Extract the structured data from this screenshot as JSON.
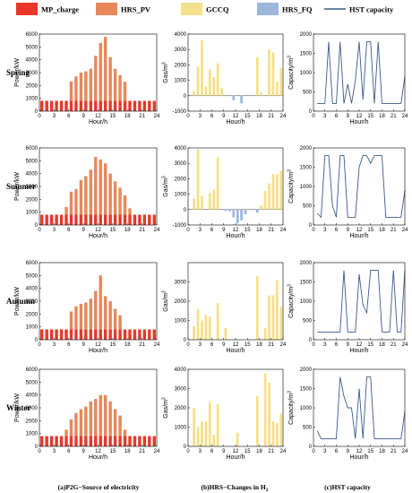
{
  "legend": {
    "items": [
      {
        "label": "MP_charge",
        "color": "#e8372a",
        "kind": "box"
      },
      {
        "label": "HRS_PV",
        "color": "#e8875a",
        "kind": "box"
      },
      {
        "label": "GCCQ",
        "color": "#f4e08a",
        "kind": "box"
      },
      {
        "label": "HRS_FQ",
        "color": "#9cb6dc",
        "kind": "box"
      },
      {
        "label": "HST capacity",
        "color": "#3a5a8c",
        "kind": "line"
      }
    ]
  },
  "seasons": [
    "Spring",
    "Summer",
    "Autumn",
    "Winter"
  ],
  "captions": {
    "a": "(a)P2G−Source of electricity",
    "b_prefix": "(b)HRS−Changes in H",
    "b_sub": "2",
    "c": "(c)HST capacity"
  },
  "axes": {
    "power_ylabel": "Power/kW",
    "gas_ylabel": "Gas/m",
    "gas_sup": "3",
    "cap_ylabel": "Capacity/m",
    "cap_sup": "3",
    "xlabel": "Hour/h",
    "xticks": [
      "0",
      "3",
      "6",
      "9",
      "12",
      "15",
      "18",
      "21",
      "24"
    ]
  },
  "chart_data": [
    {
      "type": "bar",
      "panel": "(a)",
      "season": "Spring",
      "xlim": [
        0,
        24
      ],
      "ylim": [
        0,
        6000
      ],
      "yticks": [
        0,
        1000,
        2000,
        3000,
        4000,
        5000,
        6000
      ],
      "series": [
        {
          "name": "MP_charge",
          "values": [
            800,
            800,
            800,
            800,
            800,
            800,
            800,
            800,
            800,
            800,
            800,
            800,
            800,
            800,
            800,
            800,
            800,
            800,
            800,
            800,
            800,
            800,
            800,
            800
          ]
        },
        {
          "name": "HRS_PV",
          "values": [
            0,
            0,
            0,
            0,
            0,
            0,
            1500,
            1900,
            2200,
            2300,
            2500,
            3500,
            4500,
            5000,
            3400,
            2500,
            2000,
            1500,
            0,
            0,
            0,
            0,
            0,
            0
          ]
        }
      ]
    },
    {
      "type": "bar",
      "panel": "(b)",
      "season": "Spring",
      "xlim": [
        0,
        24
      ],
      "ylim": [
        -1000,
        4000
      ],
      "yticks": [
        -1000,
        0,
        1000,
        2000,
        3000,
        4000
      ],
      "series": [
        {
          "name": "GCCQ",
          "values": [
            0,
            300,
            1900,
            3600,
            600,
            1700,
            1200,
            2100,
            500,
            0,
            0,
            0,
            0,
            0,
            0,
            0,
            0,
            2500,
            200,
            0,
            3000,
            2800,
            900,
            1800
          ]
        },
        {
          "name": "HRS_FQ",
          "values": [
            0,
            0,
            0,
            0,
            0,
            0,
            0,
            0,
            0,
            0,
            0,
            -300,
            0,
            -500,
            0,
            0,
            0,
            0,
            0,
            0,
            0,
            0,
            0,
            0
          ]
        }
      ]
    },
    {
      "type": "line",
      "panel": "(c)",
      "season": "Spring",
      "xlim": [
        0,
        24
      ],
      "ylim": [
        0,
        2000
      ],
      "yticks": [
        0,
        500,
        1000,
        1500,
        2000
      ],
      "series": [
        {
          "name": "HST capacity",
          "x": [
            1,
            2,
            3,
            4,
            5,
            6,
            7,
            8,
            9,
            10,
            11,
            12,
            13,
            14,
            15,
            16,
            17,
            18,
            19,
            20,
            21,
            22,
            23,
            24
          ],
          "values": [
            200,
            200,
            200,
            1800,
            200,
            200,
            1800,
            200,
            700,
            200,
            800,
            1800,
            300,
            1800,
            1800,
            200,
            1800,
            200,
            200,
            200,
            200,
            200,
            200,
            900
          ]
        }
      ]
    },
    {
      "type": "bar",
      "panel": "(a)",
      "season": "Summer",
      "xlim": [
        0,
        24
      ],
      "ylim": [
        0,
        6000
      ],
      "yticks": [
        0,
        1000,
        2000,
        3000,
        4000,
        5000,
        6000
      ],
      "series": [
        {
          "name": "MP_charge",
          "values": [
            800,
            800,
            800,
            800,
            800,
            800,
            800,
            800,
            800,
            800,
            800,
            800,
            800,
            800,
            800,
            800,
            800,
            800,
            800,
            800,
            800,
            800,
            800,
            800
          ]
        },
        {
          "name": "HRS_PV",
          "values": [
            0,
            0,
            0,
            0,
            0,
            600,
            1800,
            2000,
            2700,
            3000,
            3500,
            4500,
            4300,
            4000,
            3200,
            2600,
            2100,
            1500,
            500,
            0,
            0,
            0,
            0,
            0
          ]
        }
      ]
    },
    {
      "type": "bar",
      "panel": "(b)",
      "season": "Summer",
      "xlim": [
        0,
        24
      ],
      "ylim": [
        -1000,
        4000
      ],
      "yticks": [
        -1000,
        0,
        1000,
        2000,
        3000,
        4000
      ],
      "series": [
        {
          "name": "GCCQ",
          "values": [
            0,
            700,
            3900,
            900,
            0,
            1100,
            1300,
            3400,
            0,
            0,
            0,
            0,
            0,
            0,
            0,
            0,
            0,
            0,
            300,
            1200,
            1700,
            2300,
            2300,
            2500
          ]
        },
        {
          "name": "HRS_FQ",
          "values": [
            0,
            0,
            0,
            0,
            0,
            0,
            0,
            0,
            0,
            -100,
            -100,
            -500,
            -900,
            -700,
            -300,
            0,
            0,
            -200,
            0,
            0,
            0,
            0,
            0,
            0
          ]
        }
      ]
    },
    {
      "type": "line",
      "panel": "(c)",
      "season": "Summer",
      "xlim": [
        0,
        24
      ],
      "ylim": [
        0,
        2000
      ],
      "yticks": [
        0,
        500,
        1000,
        1500,
        2000
      ],
      "series": [
        {
          "name": "HST capacity",
          "x": [
            1,
            2,
            3,
            4,
            5,
            6,
            7,
            8,
            9,
            10,
            11,
            12,
            13,
            14,
            15,
            16,
            17,
            18,
            19,
            20,
            21,
            22,
            23,
            24
          ],
          "values": [
            300,
            200,
            1800,
            1800,
            500,
            200,
            1800,
            1800,
            200,
            200,
            200,
            1500,
            1800,
            1800,
            1600,
            1800,
            1800,
            1800,
            200,
            200,
            200,
            200,
            200,
            900
          ]
        }
      ]
    },
    {
      "type": "bar",
      "panel": "(a)",
      "season": "Autumn",
      "xlim": [
        0,
        24
      ],
      "ylim": [
        0,
        6000
      ],
      "yticks": [
        0,
        1000,
        2000,
        3000,
        4000,
        5000,
        6000
      ],
      "series": [
        {
          "name": "MP_charge",
          "values": [
            800,
            800,
            800,
            800,
            800,
            800,
            800,
            800,
            800,
            800,
            800,
            800,
            800,
            800,
            800,
            800,
            800,
            800,
            800,
            800,
            800,
            800,
            800,
            800
          ]
        },
        {
          "name": "HRS_PV",
          "values": [
            0,
            0,
            0,
            0,
            0,
            0,
            1400,
            1800,
            2000,
            2100,
            2400,
            3000,
            4200,
            2600,
            2200,
            1600,
            1100,
            0,
            0,
            0,
            0,
            0,
            0,
            0
          ]
        }
      ]
    },
    {
      "type": "bar",
      "panel": "(b)",
      "season": "Autumn",
      "xlim": [
        0,
        24
      ],
      "ylim": [
        0,
        4000
      ],
      "yticks": [
        0,
        1000,
        2000,
        3000
      ],
      "series": [
        {
          "name": "GCCQ",
          "values": [
            0,
            700,
            1600,
            1000,
            1300,
            1200,
            0,
            1900,
            0,
            600,
            0,
            0,
            0,
            0,
            0,
            0,
            0,
            3300,
            0,
            600,
            2300,
            2300,
            3100,
            1700
          ]
        },
        {
          "name": "HRS_FQ",
          "values": [
            0,
            0,
            0,
            0,
            0,
            0,
            0,
            0,
            0,
            0,
            0,
            0,
            0,
            0,
            0,
            0,
            0,
            0,
            0,
            0,
            0,
            0,
            0,
            0
          ]
        }
      ]
    },
    {
      "type": "line",
      "panel": "(c)",
      "season": "Autumn",
      "xlim": [
        0,
        24
      ],
      "ylim": [
        0,
        2000
      ],
      "yticks": [
        0,
        500,
        1000,
        1500,
        2000
      ],
      "series": [
        {
          "name": "HST capacity",
          "x": [
            1,
            2,
            3,
            4,
            5,
            6,
            7,
            8,
            9,
            10,
            11,
            12,
            13,
            14,
            15,
            16,
            17,
            18,
            19,
            20,
            21,
            22,
            23,
            24
          ],
          "values": [
            200,
            200,
            200,
            200,
            200,
            200,
            200,
            1800,
            200,
            200,
            200,
            1700,
            900,
            700,
            1800,
            1800,
            1800,
            200,
            200,
            200,
            1800,
            200,
            200,
            1800
          ]
        }
      ]
    },
    {
      "type": "bar",
      "panel": "(a)",
      "season": "Winter",
      "xlim": [
        0,
        24
      ],
      "ylim": [
        0,
        6000
      ],
      "yticks": [
        0,
        1000,
        2000,
        3000,
        4000,
        5000,
        6000
      ],
      "series": [
        {
          "name": "MP_charge",
          "values": [
            800,
            800,
            800,
            800,
            800,
            800,
            800,
            800,
            800,
            800,
            800,
            800,
            800,
            800,
            800,
            800,
            800,
            800,
            800,
            800,
            800,
            800,
            800,
            800
          ]
        },
        {
          "name": "HRS_PV",
          "values": [
            0,
            0,
            0,
            0,
            0,
            500,
            1300,
            1800,
            2100,
            2300,
            2700,
            2900,
            3200,
            3200,
            2700,
            2100,
            1600,
            500,
            0,
            0,
            0,
            0,
            0,
            0
          ]
        }
      ]
    },
    {
      "type": "bar",
      "panel": "(b)",
      "season": "Winter",
      "xlim": [
        0,
        24
      ],
      "ylim": [
        0,
        4000
      ],
      "yticks": [
        0,
        1000,
        2000,
        3000,
        4000
      ],
      "series": [
        {
          "name": "GCCQ",
          "values": [
            0,
            2000,
            1000,
            1300,
            1300,
            2300,
            600,
            2200,
            0,
            0,
            0,
            0,
            700,
            0,
            0,
            0,
            0,
            2600,
            0,
            3800,
            3300,
            1300,
            1200,
            1700
          ]
        },
        {
          "name": "HRS_FQ",
          "values": [
            0,
            0,
            0,
            0,
            0,
            0,
            0,
            0,
            0,
            0,
            0,
            0,
            0,
            0,
            0,
            0,
            0,
            0,
            0,
            0,
            0,
            0,
            0,
            0
          ]
        }
      ]
    },
    {
      "type": "line",
      "panel": "(c)",
      "season": "Winter",
      "xlim": [
        0,
        24
      ],
      "ylim": [
        0,
        2000
      ],
      "yticks": [
        0,
        500,
        1000,
        1500,
        2000
      ],
      "series": [
        {
          "name": "HST capacity",
          "x": [
            1,
            2,
            3,
            4,
            5,
            6,
            7,
            8,
            9,
            10,
            11,
            12,
            13,
            14,
            15,
            16,
            17,
            18,
            19,
            20,
            21,
            22,
            23,
            24
          ],
          "values": [
            400,
            200,
            200,
            200,
            200,
            200,
            1800,
            1300,
            1000,
            1000,
            200,
            1500,
            200,
            1800,
            1800,
            200,
            200,
            200,
            200,
            200,
            200,
            200,
            200,
            900
          ]
        }
      ]
    }
  ]
}
